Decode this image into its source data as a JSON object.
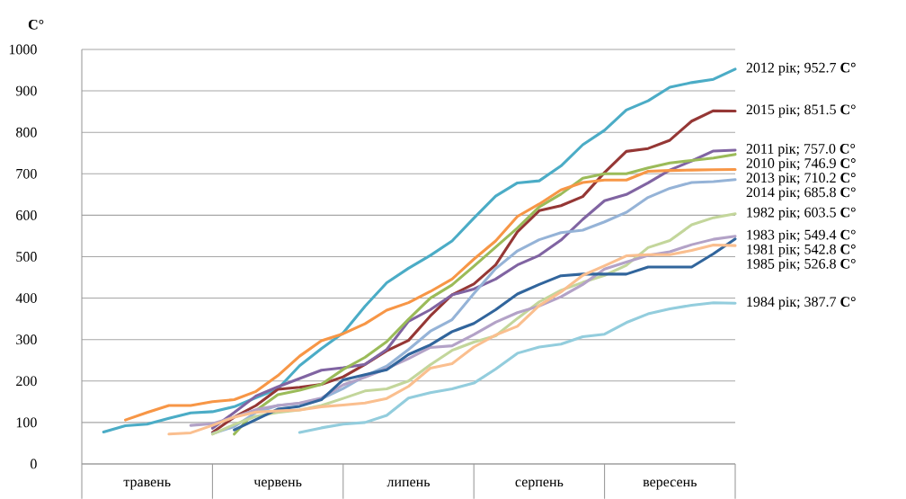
{
  "chart_data": {
    "type": "line",
    "ylabel": "C°",
    "ylim": [
      0,
      1000
    ],
    "yticks": [
      0,
      100,
      200,
      300,
      400,
      500,
      600,
      700,
      800,
      900,
      1000
    ],
    "grid": "y",
    "categories": [
      null,
      null,
      null,
      "травень",
      null,
      null,
      null,
      null,
      null,
      "червень",
      null,
      null,
      null,
      null,
      null,
      "липень",
      null,
      null,
      null,
      null,
      null,
      "серпень",
      null,
      null,
      null,
      null,
      null,
      "вересень",
      null,
      null,
      null
    ],
    "series": [
      {
        "name": "2012 рік; 952.7 **C°**",
        "color": "#4bacc6",
        "values": [
          null,
          77,
          92,
          96,
          110,
          123,
          126,
          138,
          160,
          181,
          237,
          278,
          316,
          380,
          437,
          472,
          503,
          538,
          593,
          646,
          678,
          683,
          719,
          770,
          805,
          854,
          876,
          909,
          920,
          928,
          952.7
        ]
      },
      {
        "name": "2015 рік; 851.5 **C°**",
        "color": "#953735",
        "values": [
          null,
          null,
          null,
          null,
          null,
          null,
          76,
          113,
          141,
          180,
          185,
          192,
          210,
          240,
          273,
          298,
          357,
          408,
          434,
          480,
          560,
          611,
          623,
          645,
          703,
          754,
          761,
          781,
          827,
          852,
          851.5
        ]
      },
      {
        "name": "2011 рік; 757.0 **C°**",
        "color": "#8064a2",
        "values": [
          null,
          null,
          null,
          null,
          null,
          null,
          86,
          124,
          164,
          186,
          206,
          226,
          232,
          240,
          276,
          344,
          372,
          408,
          422,
          446,
          480,
          503,
          540,
          590,
          635,
          650,
          678,
          709,
          731,
          755,
          757
        ]
      },
      {
        "name": "2010 рік; 746.9 **C°**",
        "color": "#9bbb59",
        "values": [
          null,
          null,
          null,
          null,
          null,
          null,
          null,
          72,
          129,
          167,
          178,
          192,
          228,
          257,
          295,
          349,
          400,
          432,
          477,
          523,
          569,
          620,
          651,
          689,
          700,
          700,
          714,
          726,
          732,
          738,
          746.9
        ]
      },
      {
        "name": "2013 рік; 710.2 **C°**",
        "color": "#f79646",
        "values": [
          null,
          null,
          106,
          124,
          141,
          141,
          150,
          155,
          175,
          213,
          260,
          297,
          314,
          338,
          371,
          389,
          416,
          446,
          494,
          538,
          597,
          627,
          661,
          679,
          685,
          685,
          706,
          708,
          709,
          710,
          710.2
        ]
      },
      {
        "name": "2014 рік; 685.8 **C°**",
        "color": "#95b3d7",
        "values": [
          null,
          null,
          null,
          null,
          null,
          null,
          73,
          90,
          124,
          141,
          146,
          157,
          182,
          212,
          236,
          276,
          320,
          348,
          411,
          471,
          514,
          541,
          558,
          564,
          584,
          607,
          643,
          665,
          679,
          681,
          685.8
        ]
      },
      {
        "name": "1982 рік; 603.5 **C°**",
        "color": "#c3d69b",
        "values": [
          null,
          null,
          null,
          null,
          null,
          null,
          72,
          95,
          115,
          124,
          130,
          141,
          158,
          176,
          181,
          200,
          239,
          274,
          294,
          309,
          351,
          391,
          419,
          438,
          455,
          479,
          522,
          539,
          577,
          594,
          603.5
        ]
      },
      {
        "name": "1983 рік; 549.4 **C°**",
        "color": "#b3a2c7",
        "values": [
          null,
          null,
          null,
          null,
          null,
          93,
          97,
          113,
          131,
          141,
          147,
          159,
          191,
          209,
          230,
          254,
          281,
          285,
          312,
          342,
          365,
          381,
          403,
          433,
          470,
          487,
          503,
          512,
          529,
          542,
          549.4
        ]
      },
      {
        "name": "1981 рік; 542.8 **C°**",
        "color": "#31659c",
        "values": [
          null,
          null,
          null,
          null,
          null,
          null,
          null,
          82,
          107,
          132,
          139,
          155,
          203,
          215,
          227,
          264,
          287,
          319,
          339,
          372,
          410,
          433,
          454,
          458,
          458,
          458,
          475,
          475,
          475,
          507,
          542.8
        ]
      },
      {
        "name": "1985 рік; 526.8 **C°**",
        "color": "#fabf8f",
        "values": [
          null,
          null,
          null,
          null,
          72,
          75,
          93,
          113,
          125,
          128,
          130,
          138,
          142,
          147,
          158,
          187,
          231,
          242,
          282,
          311,
          332,
          382,
          415,
          455,
          478,
          502,
          505,
          505,
          515,
          528,
          526.8
        ]
      },
      {
        "name": "1984 рік; 387.7 **C°**",
        "color": "#93cddd",
        "values": [
          null,
          null,
          null,
          null,
          null,
          null,
          null,
          null,
          null,
          null,
          76,
          87,
          96,
          100,
          117,
          159,
          172,
          181,
          195,
          229,
          267,
          282,
          289,
          307,
          313,
          341,
          362,
          374,
          383,
          389,
          387.7
        ]
      }
    ]
  }
}
